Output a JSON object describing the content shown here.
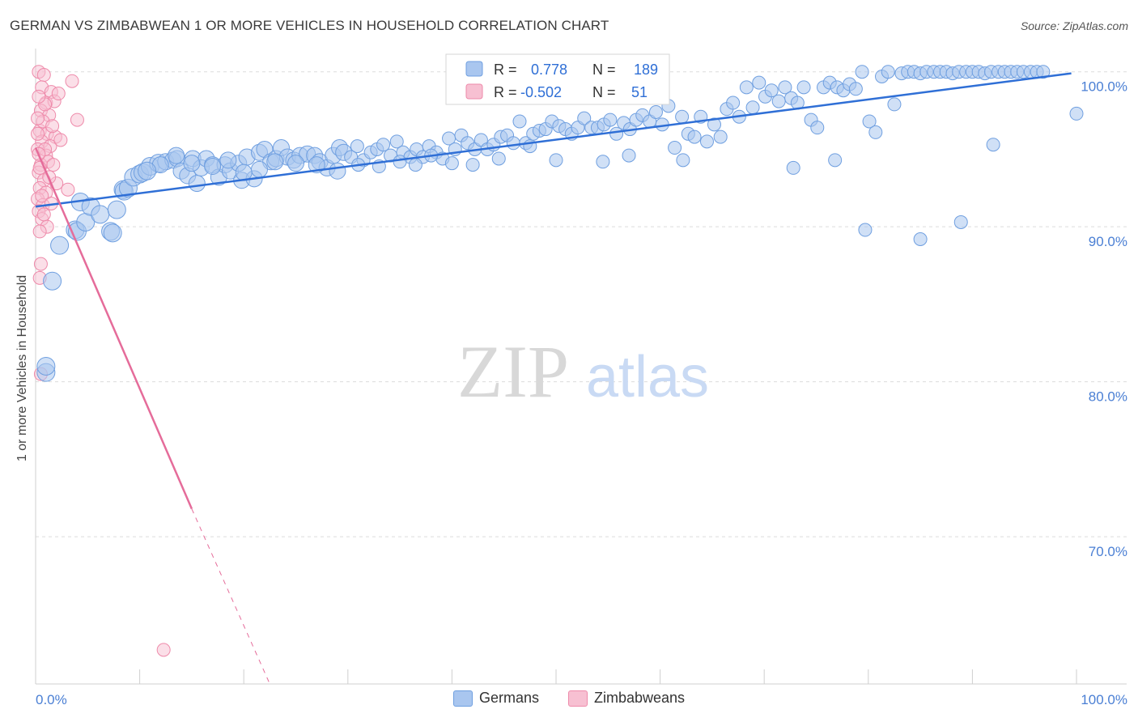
{
  "header": {
    "title": "GERMAN VS ZIMBABWEAN 1 OR MORE VEHICLES IN HOUSEHOLD CORRELATION CHART",
    "source": "Source: ZipAtlas.com"
  },
  "watermark": {
    "zip": "ZIP",
    "atlas": "atlas"
  },
  "stats_legend": {
    "rows": [
      {
        "r_label": "R =",
        "r_value": "0.778",
        "n_label": "N =",
        "n_value": "189"
      },
      {
        "r_label": "R =",
        "r_value": "-0.502",
        "n_label": "N =",
        "n_value": "51"
      }
    ]
  },
  "bottom_legend": {
    "items": [
      "Germans",
      "Zimbabweans"
    ]
  },
  "colors": {
    "blue_fill": "#a9c6ef",
    "blue_stroke": "#6f9fe0",
    "blue_line": "#2f6fd6",
    "pink_fill": "#f7c0d2",
    "pink_stroke": "#ee8aaa",
    "pink_line": "#e56c9a",
    "tick_text": "#4a7fd4",
    "grid": "#dcdcdc"
  },
  "chart_data": {
    "type": "scatter",
    "title": "GERMAN VS ZIMBABWEAN 1 OR MORE VEHICLES IN HOUSEHOLD CORRELATION CHART",
    "xlabel": "",
    "ylabel": "1 or more Vehicles in Household",
    "xlim": [
      0,
      100
    ],
    "ylim": [
      60.5,
      101.5
    ],
    "x_tick_labels": [
      "0.0%",
      "100.0%"
    ],
    "y_tick_labels": [
      {
        "value": 100,
        "label": "100.0%"
      },
      {
        "value": 90,
        "label": "90.0%"
      },
      {
        "value": 80,
        "label": "80.0%"
      },
      {
        "value": 70,
        "label": "70.0%"
      }
    ],
    "grid": true,
    "legend_position": "top-center",
    "series": [
      {
        "name": "Germans",
        "color": "#6f9fe0",
        "trendline": {
          "x": [
            0,
            99.5
          ],
          "y": [
            91.3,
            99.9
          ]
        },
        "points": [
          [
            1,
            80.6
          ],
          [
            1,
            81.0
          ],
          [
            1.6,
            86.5
          ],
          [
            2.3,
            88.8
          ],
          [
            3.8,
            89.8
          ],
          [
            4,
            89.7
          ],
          [
            4.3,
            91.6
          ],
          [
            4.8,
            90.3
          ],
          [
            5.3,
            91.3
          ],
          [
            6.2,
            90.8
          ],
          [
            7.2,
            89.7
          ],
          [
            7.4,
            89.6
          ],
          [
            7.8,
            91.1
          ],
          [
            8.4,
            92.4
          ],
          [
            8.5,
            92.3
          ],
          [
            8.9,
            92.5
          ],
          [
            9.4,
            93.2
          ],
          [
            10.0,
            93.4
          ],
          [
            10.3,
            93.5
          ],
          [
            11.0,
            93.9
          ],
          [
            11.8,
            94.1
          ],
          [
            12.5,
            94.2
          ],
          [
            13.2,
            94.3
          ],
          [
            13.6,
            94.4
          ],
          [
            14.0,
            93.6
          ],
          [
            14.6,
            93.3
          ],
          [
            15.1,
            94.4
          ],
          [
            15.5,
            92.8
          ],
          [
            15.9,
            93.8
          ],
          [
            16.4,
            94.4
          ],
          [
            17.0,
            94.0
          ],
          [
            17.6,
            93.2
          ],
          [
            18.2,
            94.0
          ],
          [
            18.7,
            93.6
          ],
          [
            19.5,
            94.1
          ],
          [
            19.8,
            93.0
          ],
          [
            20.3,
            94.5
          ],
          [
            21.0,
            93.1
          ],
          [
            21.5,
            94.8
          ],
          [
            22.0,
            95.0
          ],
          [
            22.6,
            94.2
          ],
          [
            23.1,
            94.4
          ],
          [
            23.6,
            95.1
          ],
          [
            24.2,
            94.5
          ],
          [
            24.8,
            94.3
          ],
          [
            25.4,
            94.6
          ],
          [
            26.1,
            94.7
          ],
          [
            26.8,
            94.6
          ],
          [
            27.3,
            94.2
          ],
          [
            28.0,
            93.8
          ],
          [
            28.6,
            94.6
          ],
          [
            29.2,
            95.1
          ],
          [
            29.6,
            94.8
          ],
          [
            30.3,
            94.5
          ],
          [
            30.9,
            95.2
          ],
          [
            31.5,
            94.3
          ],
          [
            32.2,
            94.8
          ],
          [
            32.8,
            95.0
          ],
          [
            33.4,
            95.3
          ],
          [
            34.1,
            94.6
          ],
          [
            34.7,
            95.5
          ],
          [
            35.3,
            94.8
          ],
          [
            36.0,
            94.5
          ],
          [
            36.6,
            95.0
          ],
          [
            37.2,
            94.5
          ],
          [
            37.8,
            95.2
          ],
          [
            38.5,
            94.8
          ],
          [
            39.1,
            94.4
          ],
          [
            39.7,
            95.7
          ],
          [
            40.3,
            95.0
          ],
          [
            40.9,
            95.9
          ],
          [
            41.5,
            95.4
          ],
          [
            42.2,
            95.0
          ],
          [
            42.8,
            95.6
          ],
          [
            43.4,
            95.0
          ],
          [
            44.0,
            95.3
          ],
          [
            44.7,
            95.8
          ],
          [
            45.3,
            95.9
          ],
          [
            45.9,
            95.4
          ],
          [
            46.5,
            96.8
          ],
          [
            47.1,
            95.4
          ],
          [
            47.8,
            96.0
          ],
          [
            48.4,
            96.2
          ],
          [
            49.0,
            96.3
          ],
          [
            49.6,
            96.8
          ],
          [
            50.3,
            96.5
          ],
          [
            50.9,
            96.3
          ],
          [
            51.5,
            96.0
          ],
          [
            52.1,
            96.4
          ],
          [
            52.7,
            97.0
          ],
          [
            53.4,
            96.4
          ],
          [
            54.0,
            96.4
          ],
          [
            54.6,
            96.6
          ],
          [
            55.2,
            96.9
          ],
          [
            55.8,
            96.0
          ],
          [
            56.5,
            96.7
          ],
          [
            57.1,
            96.3
          ],
          [
            57.7,
            96.9
          ],
          [
            58.3,
            97.2
          ],
          [
            59.0,
            96.8
          ],
          [
            59.6,
            97.4
          ],
          [
            60.2,
            96.6
          ],
          [
            60.8,
            97.8
          ],
          [
            61.4,
            95.1
          ],
          [
            62.1,
            97.1
          ],
          [
            62.7,
            96.0
          ],
          [
            63.3,
            95.8
          ],
          [
            63.9,
            97.1
          ],
          [
            64.5,
            95.5
          ],
          [
            65.2,
            96.6
          ],
          [
            65.8,
            95.8
          ],
          [
            66.4,
            97.6
          ],
          [
            67.0,
            98.0
          ],
          [
            67.6,
            97.1
          ],
          [
            68.3,
            99.0
          ],
          [
            68.9,
            97.7
          ],
          [
            69.5,
            99.3
          ],
          [
            70.1,
            98.4
          ],
          [
            70.7,
            98.8
          ],
          [
            71.4,
            98.1
          ],
          [
            72.0,
            99.0
          ],
          [
            72.6,
            98.3
          ],
          [
            73.2,
            98.0
          ],
          [
            73.8,
            99.0
          ],
          [
            74.5,
            96.9
          ],
          [
            75.1,
            96.4
          ],
          [
            75.7,
            99.0
          ],
          [
            76.3,
            99.3
          ],
          [
            77.0,
            99.0
          ],
          [
            77.6,
            98.8
          ],
          [
            78.2,
            99.2
          ],
          [
            78.8,
            98.9
          ],
          [
            79.4,
            100.0
          ],
          [
            80.1,
            96.8
          ],
          [
            80.7,
            96.1
          ],
          [
            81.3,
            99.7
          ],
          [
            81.9,
            100.0
          ],
          [
            82.5,
            97.9
          ],
          [
            83.2,
            99.9
          ],
          [
            83.8,
            100.0
          ],
          [
            84.4,
            100.0
          ],
          [
            85.0,
            99.9
          ],
          [
            85.6,
            100.0
          ],
          [
            86.3,
            100.0
          ],
          [
            86.9,
            100.0
          ],
          [
            87.5,
            100.0
          ],
          [
            88.1,
            99.9
          ],
          [
            88.7,
            100.0
          ],
          [
            89.4,
            100.0
          ],
          [
            90.0,
            100.0
          ],
          [
            90.6,
            100.0
          ],
          [
            91.2,
            99.9
          ],
          [
            91.8,
            100.0
          ],
          [
            92.5,
            100.0
          ],
          [
            93.1,
            100.0
          ],
          [
            93.7,
            100.0
          ],
          [
            94.3,
            100.0
          ],
          [
            94.9,
            100.0
          ],
          [
            95.6,
            100.0
          ],
          [
            96.2,
            100.0
          ],
          [
            96.8,
            100.0
          ],
          [
            100.0,
            97.3
          ],
          [
            54.5,
            94.2
          ],
          [
            62.2,
            94.3
          ],
          [
            76.8,
            94.3
          ],
          [
            72.8,
            93.8
          ],
          [
            79.7,
            89.8
          ],
          [
            85.0,
            89.2
          ],
          [
            88.9,
            90.3
          ],
          [
            92.0,
            95.3
          ],
          [
            57.0,
            94.6
          ],
          [
            50.0,
            94.3
          ],
          [
            47.5,
            95.2
          ],
          [
            44.5,
            94.4
          ],
          [
            42.0,
            94.0
          ],
          [
            40.0,
            94.1
          ],
          [
            38.0,
            94.6
          ],
          [
            36.5,
            94.0
          ],
          [
            35.0,
            94.2
          ],
          [
            33.0,
            93.9
          ],
          [
            31.0,
            94.0
          ],
          [
            29.0,
            93.6
          ],
          [
            27.0,
            94.0
          ],
          [
            25.0,
            94.1
          ],
          [
            23.0,
            94.2
          ],
          [
            21.5,
            93.7
          ],
          [
            20.0,
            93.5
          ],
          [
            18.5,
            94.3
          ],
          [
            17.0,
            93.9
          ],
          [
            15.0,
            94.1
          ],
          [
            13.5,
            94.6
          ],
          [
            12.0,
            94.0
          ],
          [
            10.7,
            93.6
          ]
        ]
      },
      {
        "name": "Zimbabweans",
        "color": "#ee8aaa",
        "trendline": {
          "x": [
            0,
            15
          ],
          "y": [
            95.1,
            71.8
          ]
        },
        "trendline_extension": {
          "x": [
            15,
            22.5
          ],
          "y": [
            71.8,
            60.5
          ]
        },
        "points": [
          [
            0.3,
            100.0
          ],
          [
            0.8,
            99.8
          ],
          [
            3.5,
            99.4
          ],
          [
            0.6,
            99.0
          ],
          [
            1.5,
            98.7
          ],
          [
            1.0,
            98.0
          ],
          [
            1.8,
            98.1
          ],
          [
            0.5,
            97.5
          ],
          [
            1.3,
            97.2
          ],
          [
            4.0,
            96.9
          ],
          [
            0.4,
            96.2
          ],
          [
            1.1,
            96.0
          ],
          [
            1.9,
            95.8
          ],
          [
            0.6,
            95.5
          ],
          [
            1.4,
            95.2
          ],
          [
            0.2,
            95.0
          ],
          [
            1.0,
            94.6
          ],
          [
            0.5,
            94.0
          ],
          [
            1.2,
            94.2
          ],
          [
            0.3,
            93.5
          ],
          [
            0.8,
            93.0
          ],
          [
            2.0,
            92.8
          ],
          [
            3.1,
            92.4
          ],
          [
            0.4,
            92.5
          ],
          [
            1.0,
            92.2
          ],
          [
            0.2,
            91.8
          ],
          [
            0.7,
            91.4
          ],
          [
            0.3,
            91.0
          ],
          [
            0.6,
            90.5
          ],
          [
            1.1,
            90.0
          ],
          [
            0.4,
            89.7
          ],
          [
            0.5,
            87.6
          ],
          [
            0.4,
            86.7
          ],
          [
            0.5,
            80.5
          ],
          [
            12.3,
            62.7
          ],
          [
            0.9,
            97.9
          ],
          [
            0.3,
            98.4
          ],
          [
            2.2,
            98.6
          ],
          [
            0.7,
            96.8
          ],
          [
            1.6,
            96.5
          ],
          [
            0.2,
            96.0
          ],
          [
            0.9,
            95.0
          ],
          [
            1.7,
            94.0
          ],
          [
            0.4,
            93.8
          ],
          [
            1.3,
            93.2
          ],
          [
            0.6,
            92.0
          ],
          [
            2.4,
            95.6
          ],
          [
            0.2,
            97.0
          ],
          [
            1.5,
            91.5
          ],
          [
            0.8,
            90.8
          ],
          [
            0.3,
            94.7
          ]
        ]
      }
    ]
  }
}
